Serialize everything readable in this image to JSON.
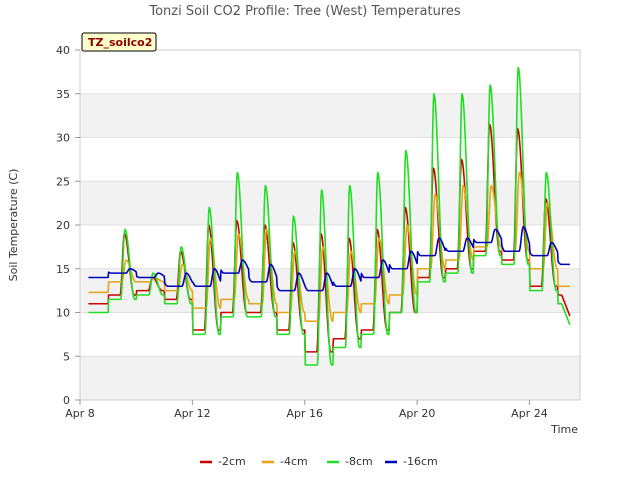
{
  "chart_data": {
    "type": "line",
    "title": "Tonzi Soil CO2 Profile: Tree (West) Temperatures",
    "xlabel": "Time",
    "ylabel": "Soil Temperature (C)",
    "badge": "TZ_soilco2",
    "x_ticks": [
      "Apr 8",
      "Apr 12",
      "Apr 16",
      "Apr 20",
      "Apr 24"
    ],
    "x_tick_days": [
      8,
      12,
      16,
      20,
      24
    ],
    "xlim": [
      8,
      25.8
    ],
    "y_ticks": [
      0,
      5,
      10,
      15,
      20,
      25,
      30,
      35,
      40
    ],
    "ylim": [
      0,
      40
    ],
    "grid": "horizontal bands",
    "legend_position": "bottom",
    "days": [
      8.3,
      9.0,
      10.0,
      11.0,
      12.0,
      13.0,
      14.0,
      15.0,
      16.0,
      17.0,
      18.0,
      19.0,
      20.0,
      21.0,
      22.0,
      23.0,
      24.0,
      25.0
    ],
    "series": [
      {
        "name": "-2cm",
        "color": "#cc0000",
        "daily_min": [
          11.0,
          12.0,
          12.5,
          11.5,
          8.0,
          10.0,
          10.0,
          8.0,
          5.5,
          7.0,
          8.0,
          10.0,
          14.0,
          15.0,
          17.0,
          16.0,
          13.0,
          12.0
        ],
        "daily_max": [
          11.0,
          19.0,
          14.0,
          17.0,
          20.0,
          20.5,
          20.0,
          18.0,
          19.0,
          18.5,
          19.5,
          22.0,
          26.5,
          27.5,
          31.5,
          31.0,
          23.0,
          21.0
        ],
        "end_value": 9.5
      },
      {
        "name": "-4cm",
        "color": "#e8a317",
        "daily_min": [
          12.3,
          13.5,
          13.5,
          12.5,
          10.5,
          11.5,
          11.0,
          10.0,
          9.0,
          10.0,
          11.0,
          12.0,
          15.0,
          16.0,
          17.5,
          17.0,
          15.0,
          13.0
        ],
        "daily_max": [
          12.3,
          16.0,
          14.0,
          15.5,
          18.5,
          19.0,
          19.5,
          17.0,
          17.5,
          17.0,
          18.5,
          20.0,
          23.5,
          24.5,
          24.5,
          26.0,
          22.5,
          20.0
        ],
        "end_value": 13.0
      },
      {
        "name": "-8cm",
        "color": "#22dd22",
        "daily_min": [
          10.0,
          11.5,
          12.0,
          11.0,
          7.5,
          9.5,
          9.5,
          7.5,
          4.0,
          6.0,
          7.5,
          10.0,
          13.5,
          14.5,
          16.5,
          15.5,
          12.5,
          11.0
        ],
        "daily_max": [
          10.0,
          19.5,
          14.5,
          17.5,
          22.0,
          26.0,
          24.5,
          21.0,
          24.0,
          24.5,
          26.0,
          28.5,
          35.0,
          35.0,
          36.0,
          38.0,
          26.0,
          25.5
        ],
        "end_value": 8.5
      },
      {
        "name": "-16cm",
        "color": "#0000bb",
        "daily_min": [
          14.0,
          14.5,
          14.0,
          13.0,
          13.0,
          14.5,
          13.5,
          12.5,
          12.5,
          13.0,
          14.0,
          15.0,
          16.5,
          17.0,
          18.0,
          17.0,
          16.5,
          15.5
        ],
        "daily_max": [
          14.0,
          15.0,
          14.5,
          14.5,
          15.0,
          16.0,
          15.5,
          14.5,
          14.5,
          15.0,
          16.0,
          17.0,
          18.5,
          18.5,
          19.5,
          19.8,
          18.0,
          17.0
        ],
        "end_value": 15.5
      }
    ]
  }
}
